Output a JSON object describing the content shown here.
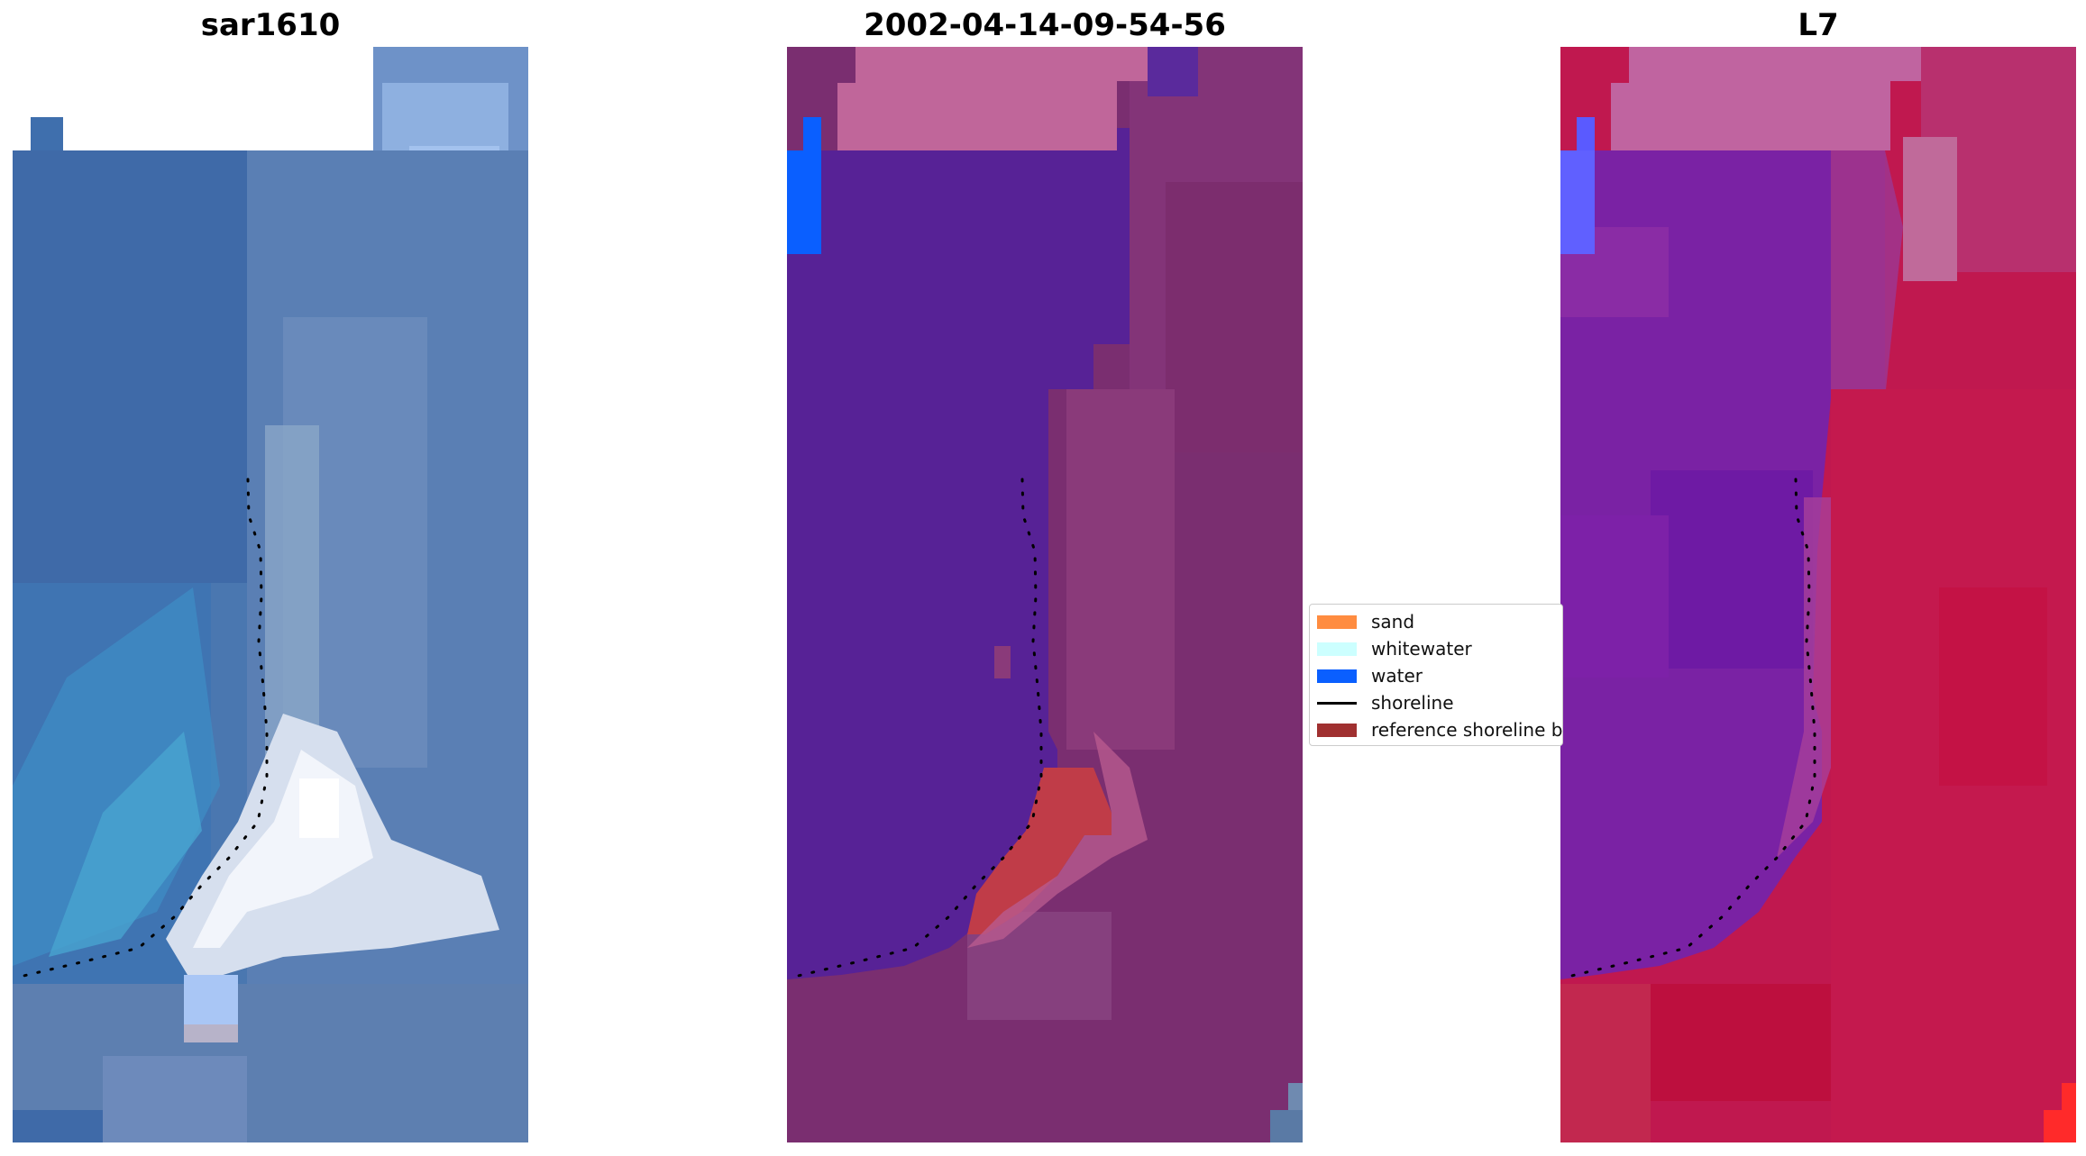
{
  "panels": [
    {
      "title": "sar1610",
      "colors": {
        "a": "#3f6fad",
        "b": "#4a9fd0",
        "c": "#8fb8e6",
        "d": "#ffffff",
        "bg": "#4d79b3"
      }
    },
    {
      "title": "2002-04-14-09-54-56",
      "colors": {
        "water": "#572296",
        "land": "#7a2e70",
        "sand": "#bc6595",
        "pink": "#c8679a",
        "blue": "#0a5fff",
        "red": "#c0404a"
      }
    },
    {
      "title": "L7",
      "colors": {
        "water": "#7a22a4",
        "land": "#c0184f",
        "sand": "#c064a0",
        "blue": "#6060ff"
      }
    }
  ],
  "legend": {
    "items": [
      {
        "label": "sand",
        "color": "#ff8c40",
        "kind": "patch"
      },
      {
        "label": "whitewater",
        "color": "#ccffff",
        "kind": "patch"
      },
      {
        "label": "water",
        "color": "#0a5fff",
        "kind": "patch"
      },
      {
        "label": "shoreline",
        "color": "#000000",
        "kind": "line"
      },
      {
        "label": "reference shoreline buffer",
        "color": "#a03030",
        "kind": "patch"
      }
    ]
  }
}
